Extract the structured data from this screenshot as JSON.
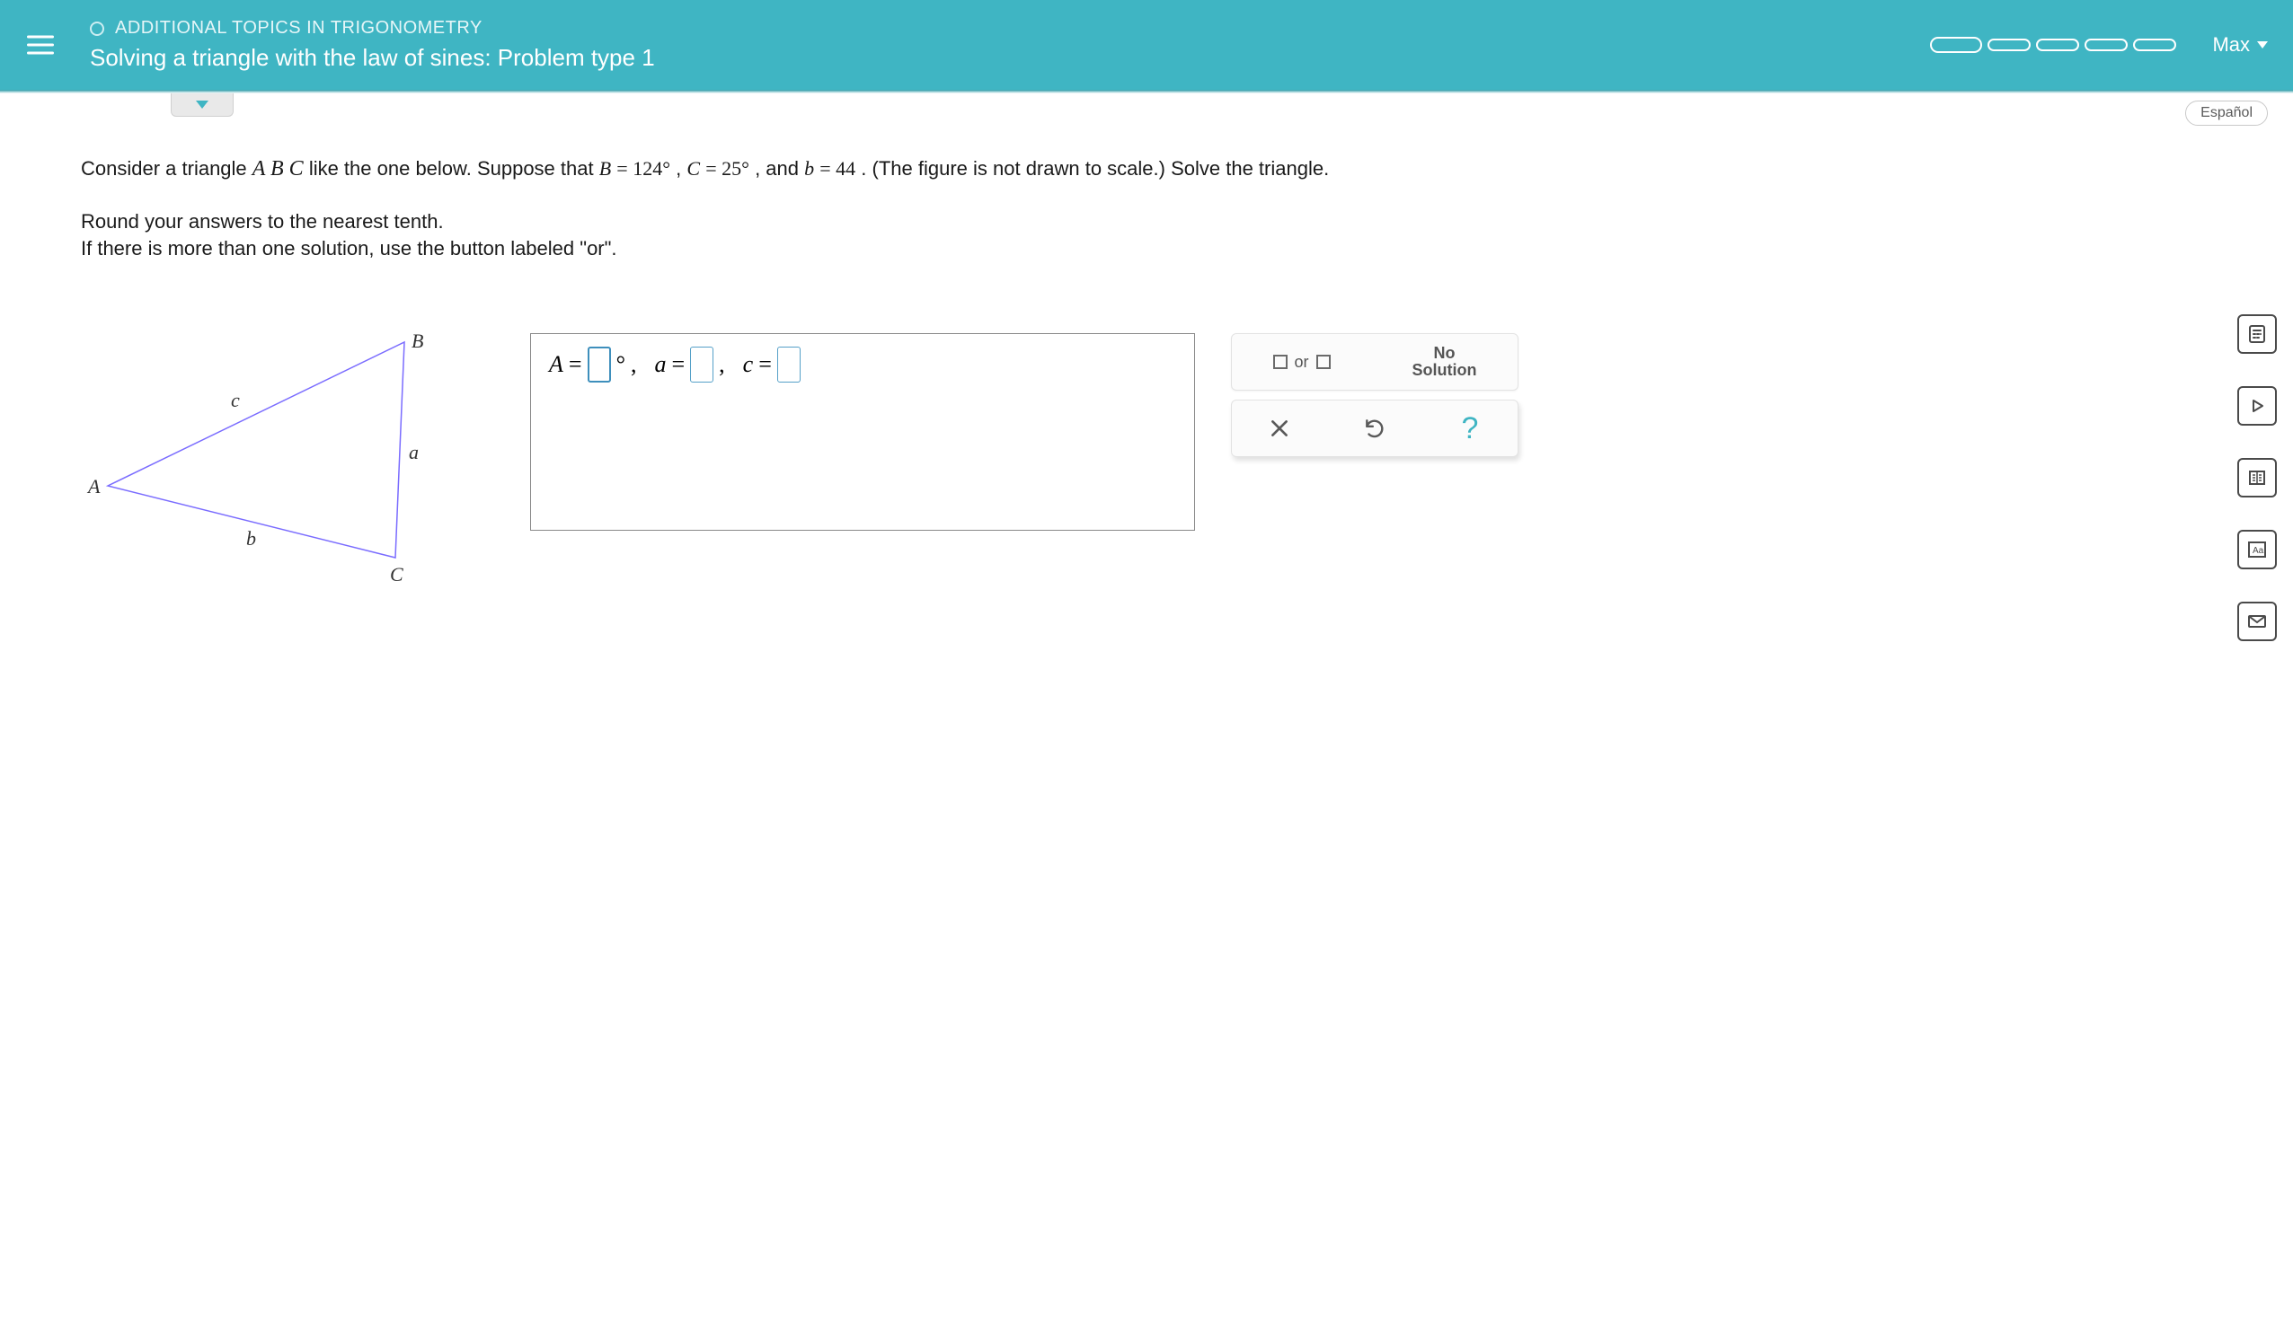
{
  "header": {
    "breadcrumb": "ADDITIONAL TOPICS IN TRIGONOMETRY",
    "title": "Solving a triangle with the law of sines: Problem type 1",
    "user": "Max",
    "progress_segments": 5,
    "accent_color": "#3fb5c3"
  },
  "subbar": {
    "language_label": "Español"
  },
  "problem": {
    "intro_prefix": "Consider a triangle ",
    "triangle_name": "A B C",
    "intro_mid": " like the one below. Suppose that ",
    "given_B_var": "B",
    "given_B_val": "124°",
    "given_C_var": "C",
    "given_C_val": "25°",
    "given_b_var": "b",
    "given_b_val": "44",
    "intro_suffix": ". (The figure is not drawn to scale.) Solve the triangle.",
    "instruction_line1": "Round your answers to the nearest tenth.",
    "instruction_line2": "If there is more than one solution, use the button labeled \"or\"."
  },
  "triangle": {
    "vertices": {
      "A": "A",
      "B": "B",
      "C": "C"
    },
    "sides": {
      "a": "a",
      "b": "b",
      "c": "c"
    },
    "stroke_color": "#7a6cff",
    "points": {
      "A": [
        30,
        170
      ],
      "B": [
        360,
        10
      ],
      "C": [
        350,
        250
      ]
    }
  },
  "answer": {
    "A_label": "A",
    "a_label": "a",
    "c_label": "c",
    "eq": "=",
    "comma": ",",
    "degree": "°"
  },
  "tools": {
    "or_label": "or",
    "no_solution_line1": "No",
    "no_solution_line2": "Solution"
  },
  "rail": {
    "icons": [
      "calculator-icon",
      "play-icon",
      "columns-icon",
      "text-size-icon",
      "mail-icon"
    ]
  }
}
